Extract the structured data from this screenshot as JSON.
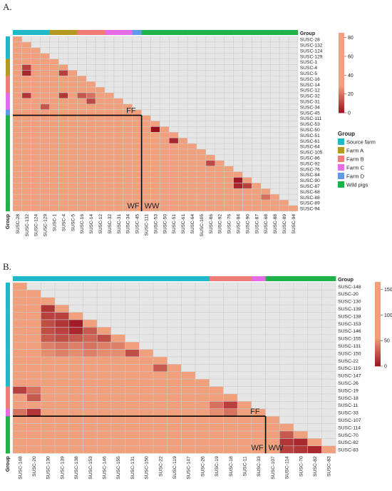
{
  "colors": {
    "group": {
      "Source farm": "#21b8c8",
      "Farm A": "#b59a22",
      "Farm B": "#ee7d77",
      "Farm C": "#e66ce6",
      "Farm D": "#5d9bea",
      "Wild pigs": "#20b24a"
    },
    "grid": "#cccccc",
    "cell_base": "#f0a07c",
    "cell_dark": "#9a0f1e",
    "background_cell": "#e6e6e6"
  },
  "chart_data": [
    {
      "type": "heatmap",
      "panel_label": "A.",
      "group_header": "Group",
      "row_group_label": "Group",
      "labels": [
        "SUSC-28",
        "SUSC-132",
        "SUSC-124",
        "SUSC-129",
        "SUSC-1",
        "SUSC-4",
        "SUSC-5",
        "SUSC-16",
        "SUSC-14",
        "SUSC-12",
        "SUSC-32",
        "SUSC-31",
        "SUSC-34",
        "SUSC-45",
        "SUSC-111",
        "SUSC-53",
        "SUSC-50",
        "SUSC-51",
        "SUSC-61",
        "SUSC-64",
        "SUSC-105",
        "SUSC-86",
        "SUSC-92",
        "SUSC-76",
        "SUSC-84",
        "SUSC-90",
        "SUSC-87",
        "SUSC-68",
        "SUSC-88",
        "SUSC-89",
        "SUSC-94"
      ],
      "groups": [
        "Source farm",
        "Source farm",
        "Source farm",
        "Source farm",
        "Farm A",
        "Farm A",
        "Farm A",
        "Farm B",
        "Farm B",
        "Farm B",
        "Farm C",
        "Farm C",
        "Farm C",
        "Farm D",
        "Wild pigs",
        "Wild pigs",
        "Wild pigs",
        "Wild pigs",
        "Wild pigs",
        "Wild pigs",
        "Wild pigs",
        "Wild pigs",
        "Wild pigs",
        "Wild pigs",
        "Wild pigs",
        "Wild pigs",
        "Wild pigs",
        "Wild pigs",
        "Wild pigs",
        "Wild pigs",
        "Wild pigs"
      ],
      "default_value": 70,
      "diagonal_value": 70,
      "low_cells": [
        [
          5,
          1,
          10
        ],
        [
          6,
          1,
          5
        ],
        [
          10,
          1,
          8
        ],
        [
          6,
          5,
          10
        ],
        [
          10,
          5,
          8
        ],
        [
          10,
          7,
          15
        ],
        [
          10,
          8,
          20
        ],
        [
          11,
          8,
          12
        ],
        [
          12,
          3,
          15
        ],
        [
          16,
          15,
          0
        ],
        [
          18,
          17,
          5
        ],
        [
          22,
          21,
          12
        ],
        [
          25,
          24,
          2
        ],
        [
          26,
          24,
          5
        ],
        [
          26,
          25,
          10
        ],
        [
          28,
          27,
          20
        ]
      ],
      "split_index": 14,
      "block_labels": {
        "FF": "FF",
        "WF": "WF",
        "WW": "WW"
      },
      "legend_ticks": [
        80,
        60,
        40,
        20,
        0
      ],
      "legend_range": [
        0,
        85
      ],
      "legend_title": "Group",
      "legend_entries": [
        "Source farm",
        "Farm A",
        "Farm B",
        "Farm C",
        "Farm D",
        "Wild pigs"
      ]
    },
    {
      "type": "heatmap",
      "panel_label": "B.",
      "group_header": "Group",
      "row_group_label": "Group",
      "labels": [
        "SUSC-148",
        "SUSC-20",
        "SUSC-130",
        "SUSC-139",
        "SUSC-138",
        "SUSC-153",
        "SUSC-146",
        "SUSC-155",
        "SUSC-131",
        "SUSC-150",
        "SUSC-22",
        "SUSC-119",
        "SUSC-147",
        "SUSC-26",
        "SUSC-19",
        "SUSC-18",
        "SUSC-11",
        "SUSC-33",
        "SUSC-107",
        "SUSC-114",
        "SUSC-70",
        "SUSC-82",
        "SUSC-83"
      ],
      "groups": [
        "Source farm",
        "Source farm",
        "Source farm",
        "Source farm",
        "Source farm",
        "Source farm",
        "Source farm",
        "Source farm",
        "Source farm",
        "Source farm",
        "Source farm",
        "Source farm",
        "Source farm",
        "Source farm",
        "Farm B",
        "Farm B",
        "Farm B",
        "Farm C",
        "Wild pigs",
        "Wild pigs",
        "Wild pigs",
        "Wild pigs",
        "Wild pigs"
      ],
      "default_value": 130,
      "diagonal_value": 130,
      "low_cells": [
        [
          3,
          2,
          15
        ],
        [
          4,
          2,
          20
        ],
        [
          4,
          3,
          20
        ],
        [
          5,
          2,
          25
        ],
        [
          5,
          3,
          15
        ],
        [
          5,
          4,
          5
        ],
        [
          6,
          2,
          25
        ],
        [
          6,
          3,
          20
        ],
        [
          6,
          4,
          10
        ],
        [
          6,
          5,
          30
        ],
        [
          7,
          2,
          30
        ],
        [
          7,
          3,
          25
        ],
        [
          7,
          4,
          30
        ],
        [
          7,
          5,
          35
        ],
        [
          7,
          6,
          25
        ],
        [
          8,
          2,
          45
        ],
        [
          8,
          3,
          40
        ],
        [
          8,
          4,
          45
        ],
        [
          8,
          5,
          40
        ],
        [
          8,
          6,
          45
        ],
        [
          8,
          7,
          45
        ],
        [
          9,
          2,
          50
        ],
        [
          9,
          3,
          45
        ],
        [
          9,
          4,
          50
        ],
        [
          9,
          5,
          45
        ],
        [
          9,
          6,
          50
        ],
        [
          9,
          7,
          50
        ],
        [
          9,
          8,
          25
        ],
        [
          11,
          10,
          30
        ],
        [
          12,
          11,
          70
        ],
        [
          14,
          0,
          20
        ],
        [
          14,
          1,
          40
        ],
        [
          15,
          0,
          60
        ],
        [
          15,
          1,
          30
        ],
        [
          15,
          14,
          60
        ],
        [
          16,
          14,
          40
        ],
        [
          16,
          15,
          20
        ],
        [
          17,
          0,
          40
        ],
        [
          17,
          1,
          15
        ],
        [
          17,
          14,
          50
        ],
        [
          17,
          15,
          40
        ],
        [
          17,
          16,
          60
        ],
        [
          20,
          19,
          30
        ],
        [
          21,
          19,
          15
        ],
        [
          21,
          20,
          10
        ],
        [
          22,
          19,
          20
        ],
        [
          22,
          20,
          15
        ],
        [
          22,
          21,
          10
        ]
      ],
      "split_index": 18,
      "block_labels": {
        "FF": "FF",
        "WF": "WF",
        "WW": "WW"
      },
      "legend_ticks": [
        150,
        100,
        50,
        0
      ],
      "legend_range": [
        0,
        165
      ]
    }
  ]
}
